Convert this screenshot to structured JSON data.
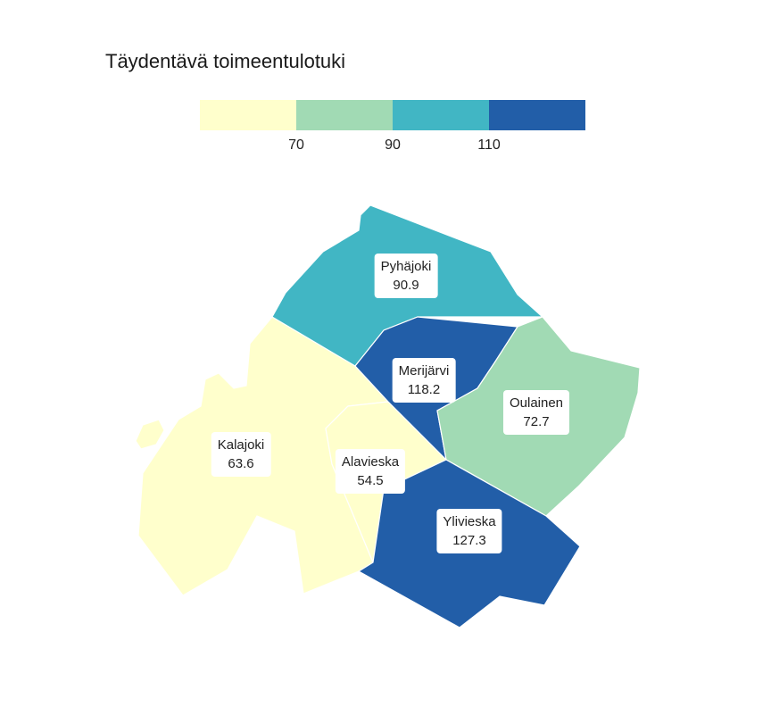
{
  "title": "Täydentävä toimeentulotuki",
  "legend": {
    "colors": [
      "#ffffcc",
      "#a1dab4",
      "#41b6c4",
      "#225ea8"
    ],
    "breaks": [
      "70",
      "90",
      "110"
    ]
  },
  "regions": [
    {
      "name": "Pyhäjoki",
      "value": "90.9",
      "color": "#41b6c4"
    },
    {
      "name": "Merijärvi",
      "value": "118.2",
      "color": "#225ea8"
    },
    {
      "name": "Oulainen",
      "value": "72.7",
      "color": "#a1dab4"
    },
    {
      "name": "Kalajoki",
      "value": "63.6",
      "color": "#ffffcc"
    },
    {
      "name": "Alavieska",
      "value": "54.5",
      "color": "#ffffcc"
    },
    {
      "name": "Ylivieska",
      "value": "127.3",
      "color": "#225ea8"
    }
  ]
}
